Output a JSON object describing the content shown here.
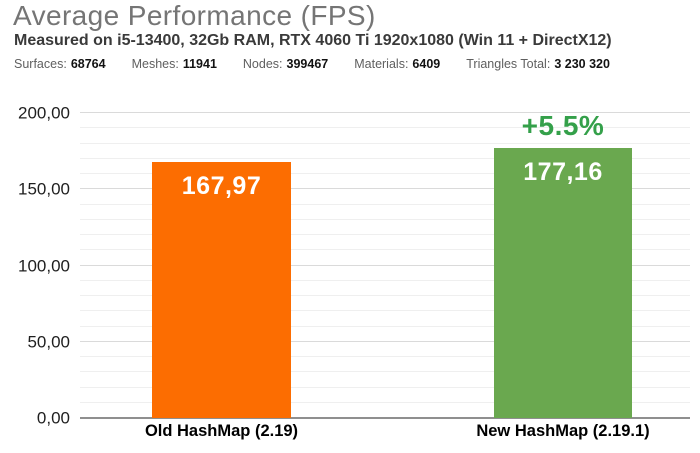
{
  "header": {
    "title": "Average Performance (FPS)",
    "subtitle": "Measured on i5-13400, 32Gb RAM, RTX 4060 Ti 1920x1080 (Win 11 + DirectX12)",
    "stats": [
      {
        "label": "Surfaces:",
        "value": "68764"
      },
      {
        "label": "Meshes:",
        "value": "11941"
      },
      {
        "label": "Nodes:",
        "value": "399467"
      },
      {
        "label": "Materials:",
        "value": "6409"
      },
      {
        "label": "Triangles Total:",
        "value": "3 230 320"
      }
    ]
  },
  "chart_data": {
    "type": "bar",
    "title": "Average Performance (FPS)",
    "categories": [
      "Old HashMap (2.19)",
      "New HashMap (2.19.1)"
    ],
    "values": [
      167.97,
      177.16
    ],
    "value_labels": [
      "167,97",
      "177,16"
    ],
    "bar_colors": [
      "#fc6d01",
      "#6aa84f"
    ],
    "annotation": {
      "text": "+5.5%",
      "bar_index": 1,
      "color": "#34a04a"
    },
    "ylim": [
      0,
      200
    ],
    "ytick_step": 50,
    "minor_tick_step": 10,
    "ytick_labels": [
      "0,00",
      "50,00",
      "100,00",
      "150,00",
      "200,00"
    ],
    "grid": "horizontal",
    "legend": "none",
    "colors": {
      "grid_major": "#dadada",
      "grid_minor": "#efefef",
      "axis_line": "#8f8f8f",
      "value_label_text": "#ffffff",
      "title_text": "#757575"
    }
  }
}
